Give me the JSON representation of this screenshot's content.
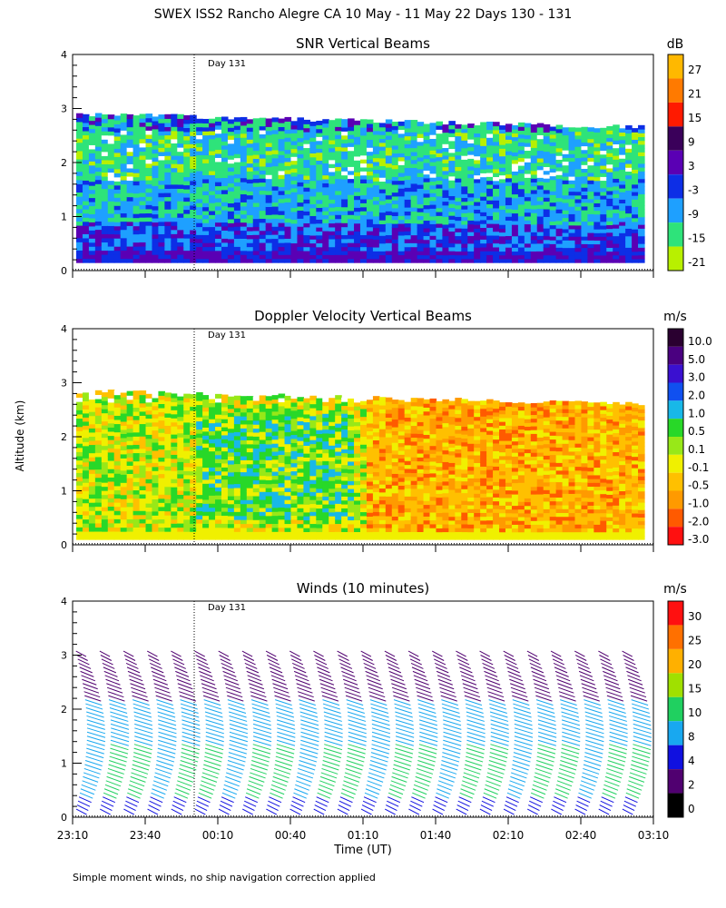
{
  "title": "SWEX ISS2 Rancho Alegre CA  10 May - 11 May 22 Days 130 - 131",
  "footnote": "Simple moment winds, no ship navigation correction applied",
  "day_marker": "Day 131",
  "ylabel": "Altitude (km)",
  "xlabel": "Time (UT)",
  "x_ticks": [
    "23:10",
    "23:40",
    "00:10",
    "00:40",
    "01:10",
    "01:40",
    "02:10",
    "02:40",
    "03:10"
  ],
  "y_ticks": [
    "0",
    "1",
    "2",
    "3",
    "4"
  ],
  "chart_data": [
    {
      "type": "heatmap",
      "title": "SNR Vertical Beams",
      "unit": "dB",
      "ylim": [
        0,
        4
      ],
      "colorbar_labels": [
        "27",
        "21",
        "15",
        "9",
        "3",
        "-3",
        "-9",
        "-15",
        "-21"
      ],
      "colorbar_colors": [
        "#ffb800",
        "#ff7a00",
        "#ff1a00",
        "#3a005a",
        "#5a00b4",
        "#0d2ee6",
        "#1ea0ff",
        "#2ee37a",
        "#b8f000"
      ],
      "data_top_km": 2.9,
      "data_bottom_km": 0.15
    },
    {
      "type": "heatmap",
      "title": "Doppler Velocity Vertical Beams",
      "unit": "m/s",
      "ylim": [
        0,
        4
      ],
      "colorbar_labels": [
        "10.0",
        "5.0",
        "3.0",
        "2.0",
        "1.0",
        "0.5",
        "0.1",
        "-0.1",
        "-0.5",
        "-1.0",
        "-2.0",
        "-3.0"
      ],
      "colorbar_colors": [
        "#2a0030",
        "#4a0080",
        "#3a10d0",
        "#1050f0",
        "#18b8e8",
        "#28d828",
        "#98e818",
        "#f0f000",
        "#ffc000",
        "#ff9a00",
        "#ff5a00",
        "#ff1010"
      ],
      "data_top_km": 2.85,
      "data_bottom_km": 0.1
    },
    {
      "type": "wind-barbs",
      "title": "Winds (10 minutes)",
      "unit": "m/s",
      "ylim": [
        0,
        4
      ],
      "colorbar_labels": [
        "30",
        "25",
        "20",
        "15",
        "10",
        "8",
        "4",
        "2",
        "0"
      ],
      "colorbar_colors": [
        "#ff1010",
        "#ff7000",
        "#ffb000",
        "#a0e000",
        "#20d060",
        "#18a8f0",
        "#1010e0",
        "#500070",
        "#000000"
      ],
      "profile_count": 24,
      "barb_top_km": 3.2
    }
  ]
}
